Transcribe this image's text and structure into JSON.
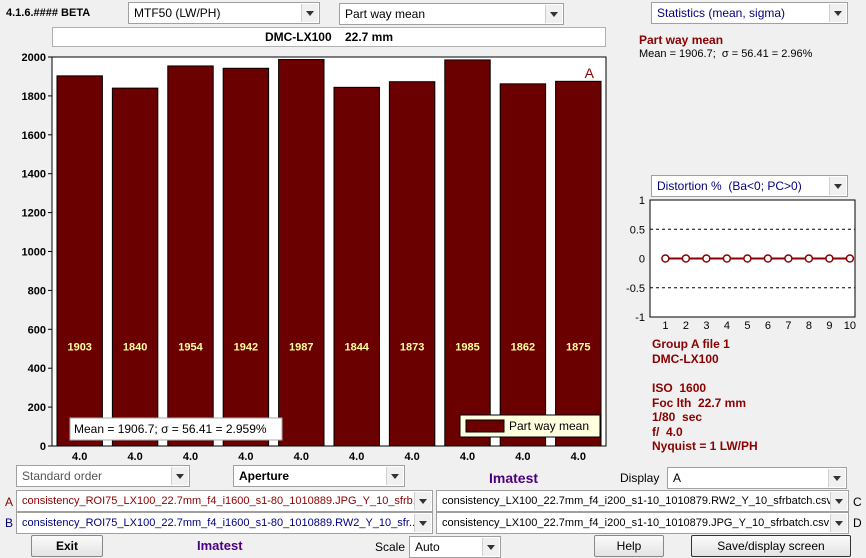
{
  "version": "4.1.6.#### BETA",
  "controls": {
    "metric": "MTF50 (LW/PH)",
    "mode": "Part way mean",
    "statistics": "Statistics (mean, sigma)",
    "distortion": "Distortion %  (Ba<0; PC>0)",
    "order": "Standard order",
    "xaxis": "Aperture",
    "display_label": "Display",
    "display_value": "A",
    "scale_label": "Scale",
    "scale_value": "Auto"
  },
  "header": {
    "camera_title": "DMC-LX100    22.7 mm",
    "imatest_center": "Imatest",
    "imatest_bottom": "Imatest"
  },
  "stats": {
    "title": "Part way mean",
    "summary": "Mean = 1906.7;  σ = 56.41 = 2.96%"
  },
  "chart_data": [
    {
      "type": "bar",
      "categories": [
        "4.0",
        "4.0",
        "4.0",
        "4.0",
        "4.0",
        "4.0",
        "4.0",
        "4.0",
        "4.0",
        "4.0"
      ],
      "values": [
        1903,
        1840,
        1954,
        1942,
        1987,
        1844,
        1873,
        1985,
        1862,
        1875
      ],
      "data_labels": [
        "1903",
        "1840",
        "1954",
        "1942",
        "1987",
        "1844",
        "1873",
        "1985",
        "1862",
        "1875"
      ],
      "yticks": [
        0,
        200,
        400,
        600,
        800,
        1000,
        1200,
        1400,
        1600,
        1800,
        2000
      ],
      "ylim": [
        0,
        2000
      ],
      "annotation_corner": "A",
      "mean_box": "Mean = 1906.7;  σ = 56.41 = 2.959%",
      "legend": "Part way mean",
      "legend_placement": "bottom-right",
      "bar_color": "#6b0000"
    },
    {
      "type": "line",
      "x": [
        1,
        2,
        3,
        4,
        5,
        6,
        7,
        8,
        9,
        10
      ],
      "values": [
        0,
        0,
        0,
        0,
        0,
        0,
        0,
        0,
        0,
        0
      ],
      "xticks": [
        "1",
        "2",
        "3",
        "4",
        "5",
        "6",
        "7",
        "8",
        "9",
        "10"
      ],
      "yticks": [
        "1",
        "0.5",
        "0",
        "-0.5",
        "-1"
      ],
      "ylim": [
        -1,
        1
      ],
      "grid": "dashed at 0.5 and -0.5",
      "line_color": "#8b0000"
    }
  ],
  "info": {
    "group": "Group A file 1",
    "camera": "DMC-LX100",
    "iso": "ISO  1600",
    "focal": "Foc lth  22.7 mm",
    "shutter": "1/80  sec",
    "aperture": "f/  4.0",
    "nyquist": "Nyquist = 1 LW/PH"
  },
  "files": {
    "a_label": "A",
    "a_file": "consistency_ROI75_LX100_22.7mm_f4_i1600_s1-80_1010889.JPG_Y_10_sfrb...",
    "b_label": "B",
    "b_file": "consistency_ROI75_LX100_22.7mm_f4_i1600_s1-80_1010889.RW2_Y_10_sfr...",
    "c_label": "C",
    "c_file": "consistency_LX100_22.7mm_f4_i200_s1-10_1010879.RW2_Y_10_sfrbatch.csv",
    "d_label": "D",
    "d_file": "consistency_LX100_22.7mm_f4_i200_s1-10_1010879.JPG_Y_10_sfrbatch.csv"
  },
  "buttons": {
    "exit": "Exit",
    "help": "Help",
    "save": "Save/display screen"
  },
  "colors": {
    "bar": "#6b0000",
    "label_red": "#8b0000",
    "file_navy": "#000080"
  }
}
